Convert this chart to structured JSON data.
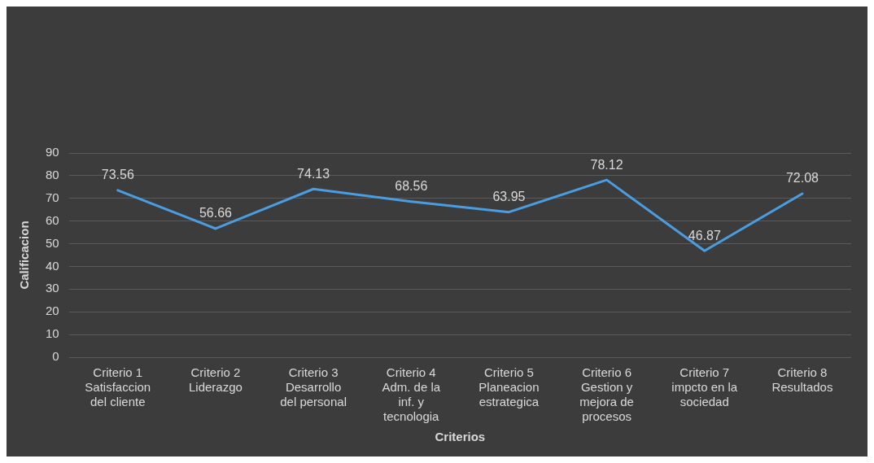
{
  "chart_data": {
    "type": "line",
    "xlabel": "Criterios",
    "ylabel": "Calificacion",
    "categories": [
      "Criterio 1 Satisfaccion del cliente",
      "Criterio 2 Liderazgo",
      "Criterio 3 Desarrollo del personal",
      "Criterio 4 Adm. de la inf. y tecnologia",
      "Criterio 5 Planeacion estrategica",
      "Criterio 6 Gestion y mejora de procesos",
      "Criterio 7 impcto en la sociedad",
      "Criterio 8 Resultados"
    ],
    "series": [
      {
        "color": "#4a9de0",
        "values": [
          73.56,
          56.66,
          74.13,
          68.56,
          63.95,
          78.12,
          46.87,
          72.08
        ]
      }
    ],
    "ylim": [
      0,
      90
    ],
    "yticks": [
      0,
      10,
      20,
      30,
      40,
      50,
      60,
      70,
      80,
      90
    ],
    "grid": "y",
    "data_labels": true,
    "marker": "none",
    "line_style": "solid",
    "legend": false
  }
}
